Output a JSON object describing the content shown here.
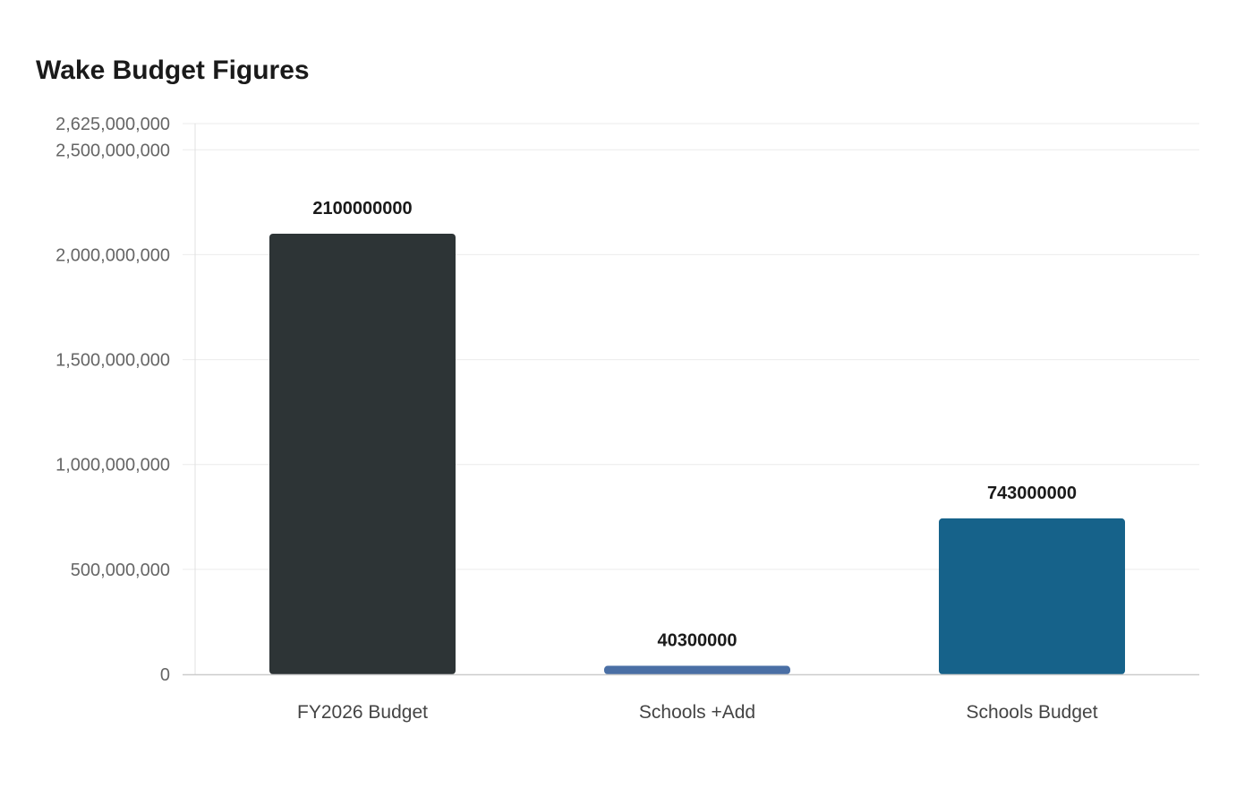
{
  "chart_data": {
    "type": "bar",
    "title": "Wake Budget Figures",
    "categories": [
      "FY2026 Budget",
      "Schools +Add",
      "Schools Budget"
    ],
    "values": [
      2100000000,
      40300000,
      743000000
    ],
    "data_labels": [
      "2100000000",
      "40300000",
      "743000000"
    ],
    "colors": [
      "#2d3436",
      "#4a6fa5",
      "#16628a"
    ],
    "ylim": [
      0,
      2625000000
    ],
    "yticks": [
      0,
      500000000,
      1000000000,
      1500000000,
      2000000000,
      2500000000,
      2625000000
    ],
    "ytick_labels": [
      "0",
      "500,000,000",
      "1,000,000,000",
      "1,500,000,000",
      "2,000,000,000",
      "2,500,000,000",
      "2,625,000,000"
    ],
    "grid": true,
    "legend": "none",
    "xlabel": "",
    "ylabel": ""
  }
}
